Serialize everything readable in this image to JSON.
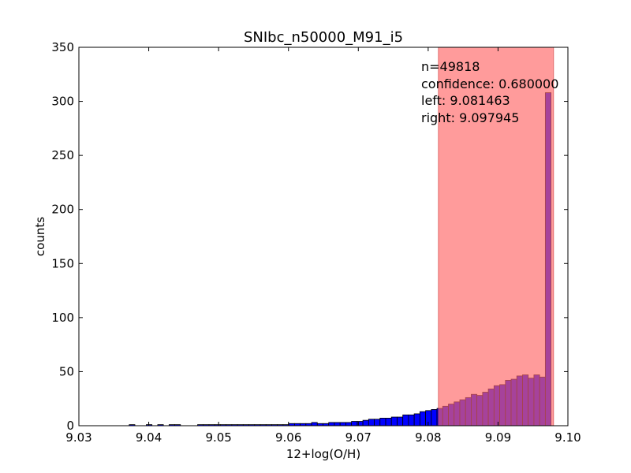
{
  "chart_data": {
    "type": "bar",
    "title": "SNIbc_n50000_M91_i5",
    "xlabel": "12+log(O/H)",
    "ylabel": "counts",
    "xlim": [
      9.03,
      9.1
    ],
    "ylim": [
      0,
      350
    ],
    "xticks": [
      "9.03",
      "9.04",
      "9.05",
      "9.06",
      "9.07",
      "9.08",
      "9.09",
      "9.10"
    ],
    "xtick_values": [
      9.03,
      9.04,
      9.05,
      9.06,
      9.07,
      9.08,
      9.09,
      9.1
    ],
    "yticks": [
      "0",
      "50",
      "100",
      "150",
      "200",
      "250",
      "300",
      "350"
    ],
    "ytick_values": [
      0,
      50,
      100,
      150,
      200,
      250,
      300,
      350
    ],
    "grid": false,
    "bar_color": "#0000ff",
    "bar_edge_color": "#000000",
    "bins": {
      "start": 9.0372,
      "width": 0.000816,
      "counts": [
        1,
        0,
        0,
        1,
        0,
        1,
        0,
        1,
        1,
        0,
        0,
        0,
        1,
        1,
        1,
        1,
        1,
        1,
        1,
        1,
        1,
        1,
        1,
        1,
        1,
        1,
        1,
        1,
        2,
        2,
        2,
        2,
        3,
        2,
        2,
        3,
        3,
        3,
        3,
        4,
        4,
        5,
        6,
        6,
        7,
        7,
        8,
        8,
        10,
        10,
        11,
        13,
        14,
        15,
        16,
        18,
        20,
        22,
        24,
        26,
        29,
        28,
        31,
        34,
        37,
        38,
        42,
        43,
        46,
        47,
        44,
        47,
        45,
        308
      ]
    },
    "interval": {
      "left": 9.081463,
      "right": 9.097945,
      "color": "#ff6666",
      "opacity": 0.65
    },
    "annotation": {
      "lines": [
        "n=49818",
        "confidence: 0.680000",
        "left: 9.081463",
        "right: 9.097945"
      ]
    }
  }
}
